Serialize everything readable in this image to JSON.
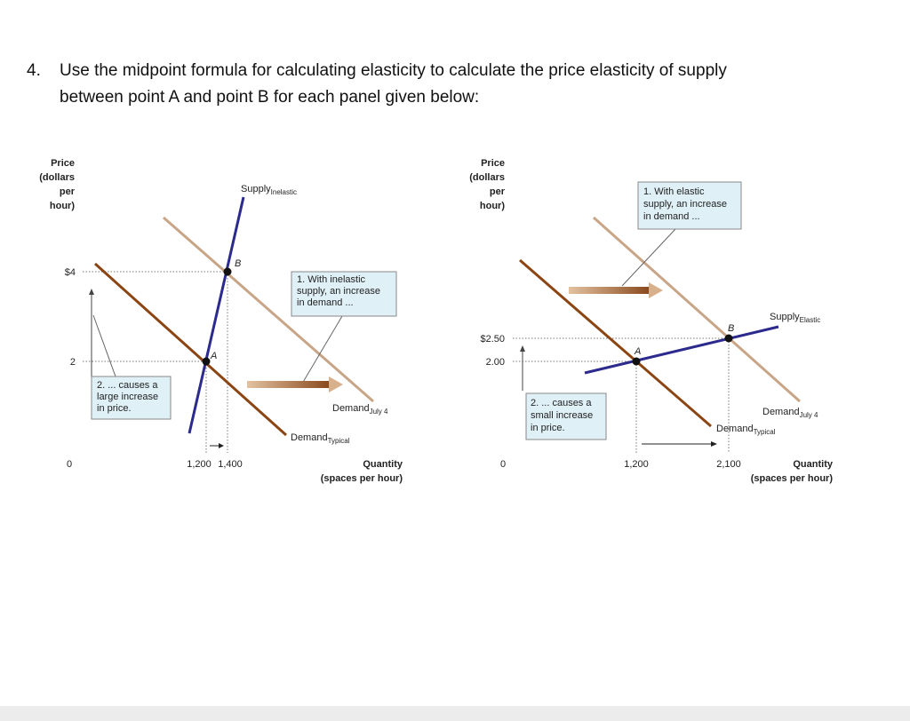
{
  "question": {
    "number": "4.",
    "lines": [
      "Use the midpoint formula for calculating elasticity to calculate the price elasticity of supply",
      "between point A and point B for each panel given below:"
    ]
  },
  "panels": [
    {
      "y_axis_title": [
        "Price",
        "(dollars",
        "per",
        "hour)"
      ],
      "y_labels": [
        "$4",
        "2"
      ],
      "origin": "0",
      "x_labels": [
        "1,200",
        "1,400"
      ],
      "x_axis_title": [
        "Quantity",
        "(spaces per hour)"
      ],
      "supply": {
        "name": "Supply",
        "sub": "Inelastic"
      },
      "demand_new": {
        "name": "Demand",
        "sub": "July 4"
      },
      "demand_old": {
        "name": "Demand",
        "sub": "Typical"
      },
      "points": [
        "A",
        "B"
      ],
      "callout_1": [
        "1. With inelastic",
        "supply, an increase",
        "in demand ..."
      ],
      "callout_2": [
        "2. ... causes a",
        "large increase",
        "in price."
      ]
    },
    {
      "y_axis_title": [
        "Price",
        "(dollars",
        "per",
        "hour)"
      ],
      "y_labels": [
        "$2.50",
        "2.00"
      ],
      "origin": "0",
      "x_labels": [
        "1,200",
        "2,100"
      ],
      "x_axis_title": [
        "Quantity",
        "(spaces per hour)"
      ],
      "supply": {
        "name": "Supply",
        "sub": "Elastic"
      },
      "demand_new": {
        "name": "Demand",
        "sub": "July 4"
      },
      "demand_old": {
        "name": "Demand",
        "sub": "Typical"
      },
      "points": [
        "A",
        "B"
      ],
      "callout_1": [
        "1. With elastic",
        "supply, an increase",
        "in demand ..."
      ],
      "callout_2": [
        "2. ... causes a",
        "small increase",
        "in price."
      ]
    }
  ]
}
